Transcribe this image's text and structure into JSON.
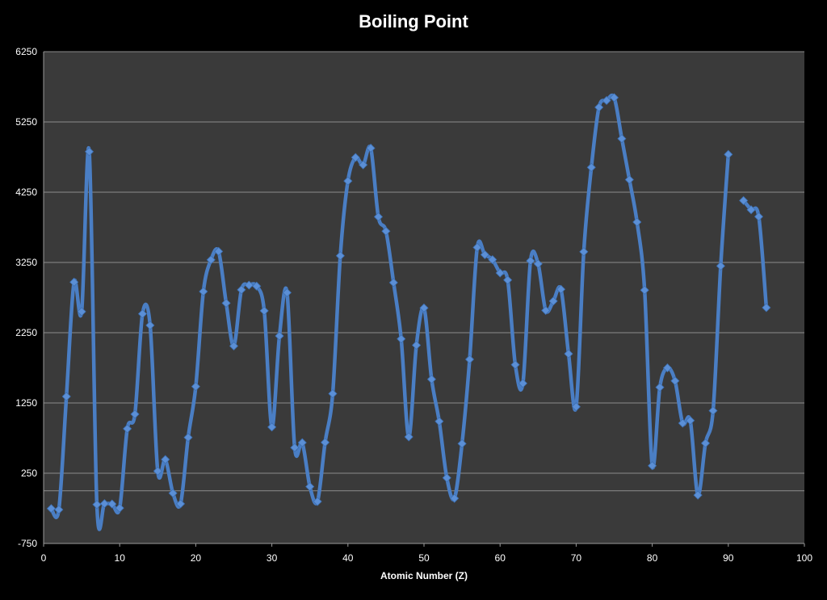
{
  "chart_data": {
    "type": "line",
    "title": "Boiling Point",
    "xlabel": "Atomic Number (Z)",
    "ylabel": "",
    "xlim": [
      0,
      100
    ],
    "ylim": [
      -750,
      6250
    ],
    "xticks": [
      0,
      10,
      20,
      30,
      40,
      50,
      60,
      70,
      80,
      90,
      100
    ],
    "yticks": [
      -750,
      250,
      1250,
      2250,
      3250,
      4250,
      5250,
      6250
    ],
    "grid": true,
    "legend": "none",
    "colors": {
      "background": "#000000",
      "plot_area": "#3a3a3a",
      "line": "#4a7ec4",
      "marker": "#5b8fd6",
      "grid": "#8c8c8c",
      "text": "#ffffff"
    },
    "series": [
      {
        "x": [
          1,
          2,
          3,
          4,
          5,
          6,
          7,
          8,
          9,
          10,
          11,
          12,
          13,
          14,
          15,
          16,
          17,
          18,
          19,
          20,
          21,
          22,
          23,
          24,
          25,
          26,
          27,
          28,
          29,
          30,
          31,
          32,
          33,
          34,
          35,
          36,
          37,
          38,
          39,
          40,
          41,
          42,
          43,
          44,
          45,
          46,
          47,
          48,
          49,
          50,
          51,
          52,
          53,
          54,
          55,
          56,
          57,
          58,
          59,
          60,
          61,
          62,
          63,
          64,
          65,
          66,
          67,
          68,
          69,
          70,
          71,
          72,
          73,
          74,
          75,
          76,
          77,
          78,
          79,
          80,
          81,
          82,
          83,
          84,
          85,
          86,
          87,
          88,
          89,
          90,
          91,
          92,
          93,
          94,
          95
        ],
        "y": [
          -253,
          -269,
          1342,
          2970,
          2550,
          4827,
          -196,
          -183,
          -188,
          -246,
          883,
          1090,
          2519,
          2355,
          280,
          445,
          -34,
          -186,
          759,
          1484,
          2836,
          3287,
          3407,
          2671,
          2061,
          2861,
          2927,
          2913,
          2562,
          907,
          2204,
          2820,
          614,
          685,
          59,
          -153,
          688,
          1382,
          3345,
          4409,
          4744,
          4639,
          4877,
          3900,
          3695,
          2963,
          2162,
          767,
          2072,
          2602,
          1587,
          988,
          184,
          -108,
          671,
          1870,
          3464,
          3360,
          3290,
          3100,
          3000,
          1794,
          1529,
          3273,
          3230,
          2567,
          2700,
          2868,
          1950,
          1196,
          3402,
          4603,
          5458,
          5555,
          5596,
          5012,
          4428,
          3825,
          2856,
          357,
          1473,
          1749,
          1564,
          962,
          1000,
          -62,
          677,
          1140,
          3200,
          4788,
          null,
          4131,
          4000,
          3902,
          2607
        ]
      }
    ]
  }
}
